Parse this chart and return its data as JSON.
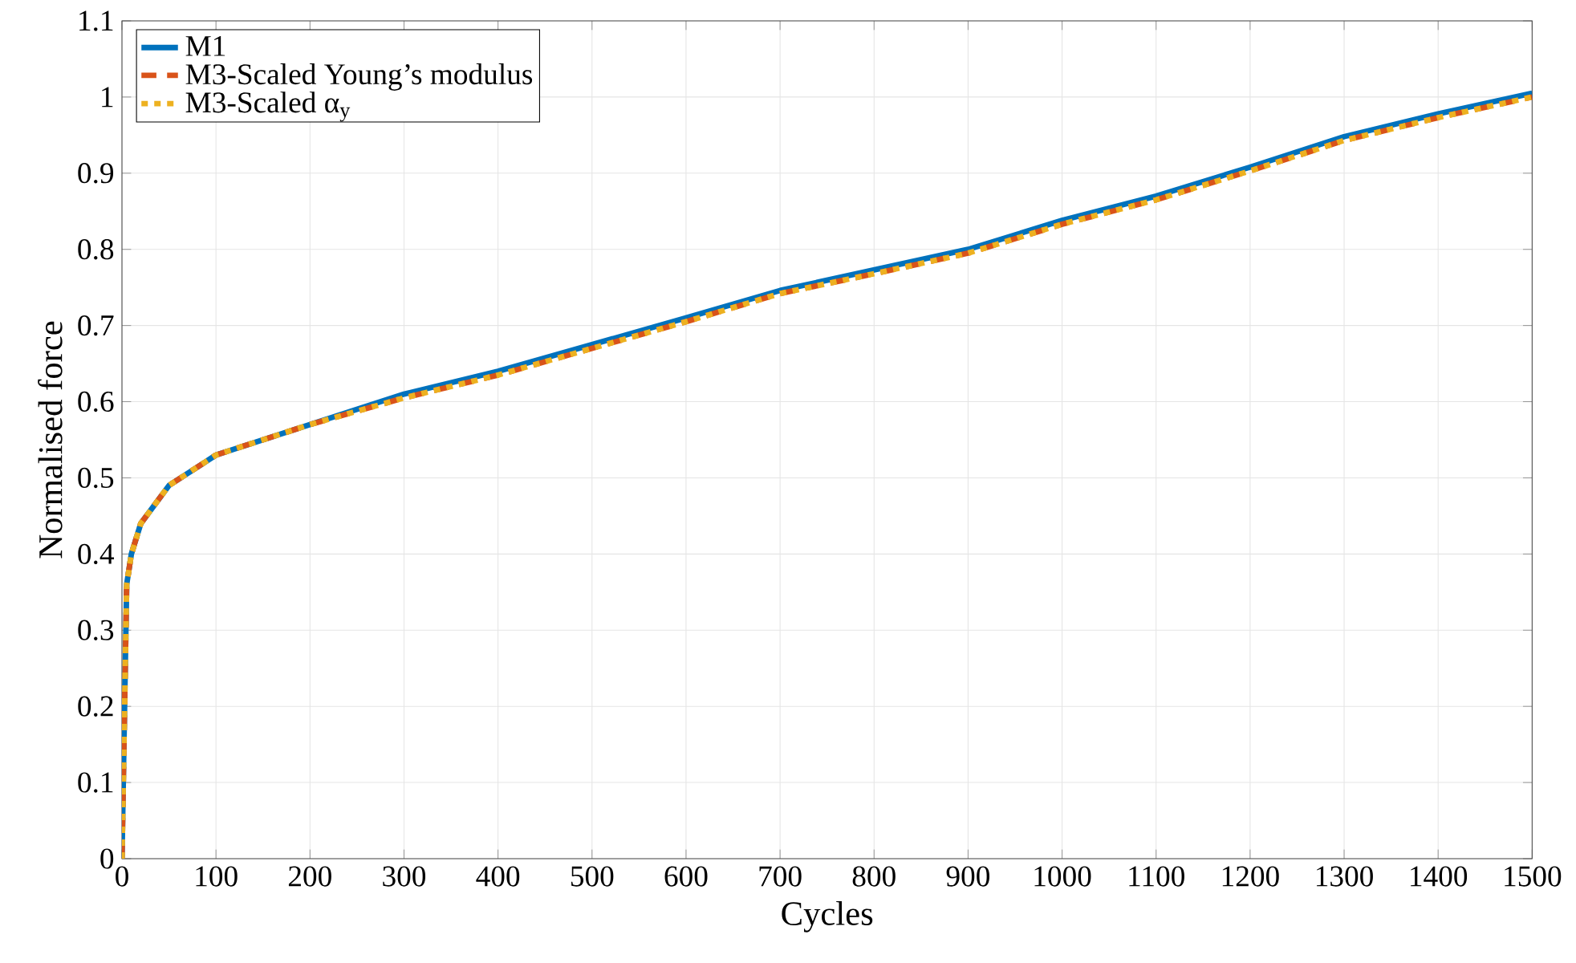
{
  "chart_data": {
    "type": "line",
    "xlabel": "Cycles",
    "ylabel": "Normalised force",
    "x": [
      0,
      5,
      10,
      20,
      50,
      100,
      200,
      300,
      400,
      500,
      600,
      700,
      800,
      900,
      1000,
      1100,
      1200,
      1300,
      1400,
      1500
    ],
    "series": [
      {
        "name": "M1",
        "color": "#0072bd",
        "line_style": "solid",
        "values": [
          0,
          0.36,
          0.4,
          0.44,
          0.49,
          0.53,
          0.57,
          0.61,
          0.64,
          0.675,
          0.71,
          0.746,
          0.773,
          0.8,
          0.838,
          0.87,
          0.908,
          0.948,
          0.978,
          1.005
        ]
      },
      {
        "name": "M3-Scaled Young’s modulus",
        "color": "#d95319",
        "line_style": "dashed",
        "values": [
          0,
          0.36,
          0.4,
          0.44,
          0.49,
          0.53,
          0.57,
          0.605,
          0.635,
          0.67,
          0.705,
          0.742,
          0.768,
          0.795,
          0.833,
          0.865,
          0.903,
          0.943,
          0.973,
          1.0
        ]
      },
      {
        "name": "M3-Scaled α$_{y}$",
        "color": "#edb120",
        "line_style": "dotted",
        "values": [
          0,
          0.36,
          0.4,
          0.44,
          0.49,
          0.53,
          0.57,
          0.605,
          0.635,
          0.67,
          0.705,
          0.742,
          0.768,
          0.795,
          0.833,
          0.865,
          0.903,
          0.943,
          0.973,
          1.0
        ]
      }
    ],
    "xlim": [
      0,
      1500
    ],
    "ylim": [
      0,
      1.1
    ],
    "xticks": [
      0,
      100,
      200,
      300,
      400,
      500,
      600,
      700,
      800,
      900,
      1000,
      1100,
      1200,
      1300,
      1400,
      1500
    ],
    "yticks": [
      0,
      0.1,
      0.2,
      0.3,
      0.4,
      0.5,
      0.6,
      0.7,
      0.8,
      0.9,
      1,
      1.1
    ],
    "grid": true,
    "legend": "top left",
    "marker": "none"
  }
}
